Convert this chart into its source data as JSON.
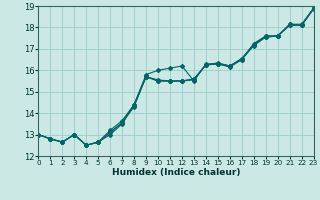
{
  "title": "",
  "xlabel": "Humidex (Indice chaleur)",
  "xlim": [
    0,
    23
  ],
  "ylim": [
    12,
    19
  ],
  "xticks": [
    0,
    1,
    2,
    3,
    4,
    5,
    6,
    7,
    8,
    9,
    10,
    11,
    12,
    13,
    14,
    15,
    16,
    17,
    18,
    19,
    20,
    21,
    22,
    23
  ],
  "yticks": [
    12,
    13,
    14,
    15,
    16,
    17,
    18,
    19
  ],
  "bg_color": "#cce8e4",
  "grid_color": "#99cccc",
  "line_color": "#006666",
  "lines": [
    [
      0,
      13.0
    ],
    [
      1,
      12.8
    ],
    [
      2,
      12.65
    ],
    [
      3,
      13.0
    ],
    [
      4,
      12.5
    ],
    [
      5,
      12.65
    ],
    [
      6,
      13.2
    ],
    [
      7,
      13.65
    ],
    [
      8,
      14.4
    ],
    [
      9,
      15.8
    ],
    [
      10,
      16.0
    ],
    [
      11,
      16.1
    ],
    [
      12,
      16.2
    ],
    [
      13,
      15.5
    ],
    [
      14,
      16.3
    ],
    [
      15,
      16.3
    ],
    [
      16,
      16.2
    ],
    [
      17,
      16.5
    ],
    [
      18,
      17.25
    ],
    [
      19,
      17.6
    ],
    [
      20,
      17.6
    ],
    [
      21,
      18.15
    ],
    [
      22,
      18.1
    ],
    [
      23,
      18.9
    ]
  ],
  "lines2": [
    [
      0,
      13.0
    ],
    [
      1,
      12.8
    ],
    [
      2,
      12.65
    ],
    [
      3,
      13.0
    ],
    [
      4,
      12.5
    ],
    [
      5,
      12.65
    ],
    [
      6,
      13.1
    ],
    [
      7,
      13.55
    ],
    [
      8,
      14.3
    ],
    [
      9,
      15.7
    ],
    [
      10,
      15.55
    ],
    [
      11,
      15.5
    ],
    [
      12,
      15.5
    ],
    [
      13,
      15.55
    ],
    [
      14,
      16.25
    ],
    [
      15,
      16.3
    ],
    [
      16,
      16.2
    ],
    [
      17,
      16.55
    ],
    [
      18,
      17.2
    ],
    [
      19,
      17.55
    ],
    [
      20,
      17.6
    ],
    [
      21,
      18.1
    ],
    [
      22,
      18.1
    ],
    [
      23,
      18.85
    ]
  ],
  "lines3": [
    [
      0,
      13.0
    ],
    [
      1,
      12.8
    ],
    [
      2,
      12.65
    ],
    [
      3,
      13.0
    ],
    [
      4,
      12.5
    ],
    [
      5,
      12.65
    ],
    [
      6,
      13.0
    ],
    [
      7,
      13.5
    ],
    [
      8,
      14.4
    ],
    [
      9,
      15.7
    ],
    [
      10,
      15.5
    ],
    [
      11,
      15.5
    ],
    [
      12,
      15.5
    ],
    [
      13,
      15.6
    ],
    [
      14,
      16.25
    ],
    [
      15,
      16.3
    ],
    [
      16,
      16.15
    ],
    [
      17,
      16.5
    ],
    [
      18,
      17.15
    ],
    [
      19,
      17.55
    ],
    [
      20,
      17.6
    ],
    [
      21,
      18.1
    ],
    [
      22,
      18.1
    ],
    [
      23,
      18.9
    ]
  ],
  "lines4": [
    [
      0,
      13.0
    ],
    [
      1,
      12.8
    ],
    [
      2,
      12.65
    ],
    [
      3,
      13.0
    ],
    [
      4,
      12.5
    ],
    [
      5,
      12.65
    ],
    [
      6,
      13.1
    ],
    [
      7,
      13.55
    ],
    [
      8,
      14.4
    ],
    [
      9,
      15.7
    ],
    [
      10,
      15.5
    ],
    [
      11,
      15.5
    ],
    [
      12,
      15.5
    ],
    [
      13,
      15.6
    ],
    [
      14,
      16.25
    ],
    [
      15,
      16.35
    ],
    [
      16,
      16.2
    ],
    [
      17,
      16.55
    ],
    [
      18,
      17.2
    ],
    [
      19,
      17.6
    ],
    [
      20,
      17.6
    ],
    [
      21,
      18.15
    ],
    [
      22,
      18.15
    ],
    [
      23,
      18.9
    ]
  ]
}
